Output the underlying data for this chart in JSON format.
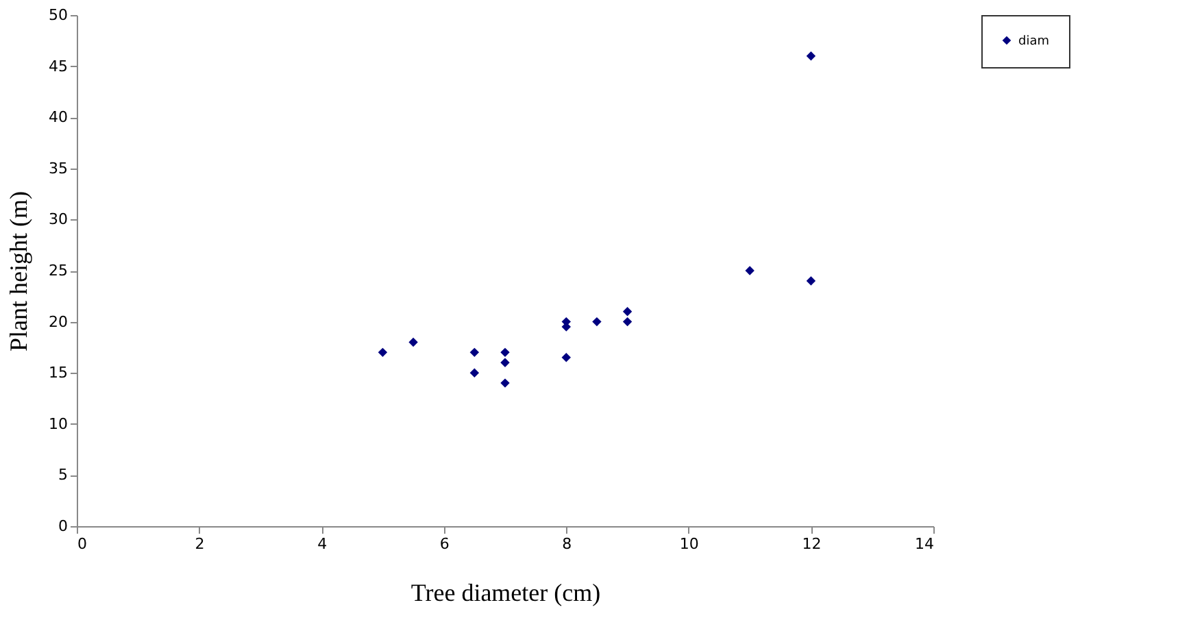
{
  "chart_data": {
    "type": "scatter",
    "xlabel": "Tree diameter  (cm)",
    "ylabel": "Plant height (m)",
    "x": [
      5,
      5.5,
      6.5,
      6.5,
      7,
      7,
      7,
      8,
      8,
      8,
      8.5,
      9,
      9,
      11,
      12,
      12
    ],
    "series": [
      {
        "name": "diam",
        "color": "#000080",
        "values": [
          17,
          18,
          17,
          15,
          17,
          16,
          14,
          20,
          19.5,
          16.5,
          20,
          21,
          20,
          25,
          24,
          46
        ]
      }
    ],
    "xlim": [
      0,
      14
    ],
    "xticks": [
      0,
      2,
      4,
      6,
      8,
      10,
      12,
      14
    ],
    "ylim": [
      0,
      50
    ],
    "yticks": [
      0,
      5,
      10,
      15,
      20,
      25,
      30,
      35,
      40,
      45,
      50
    ],
    "marker": "diamond",
    "grid": false,
    "legend": "right"
  }
}
